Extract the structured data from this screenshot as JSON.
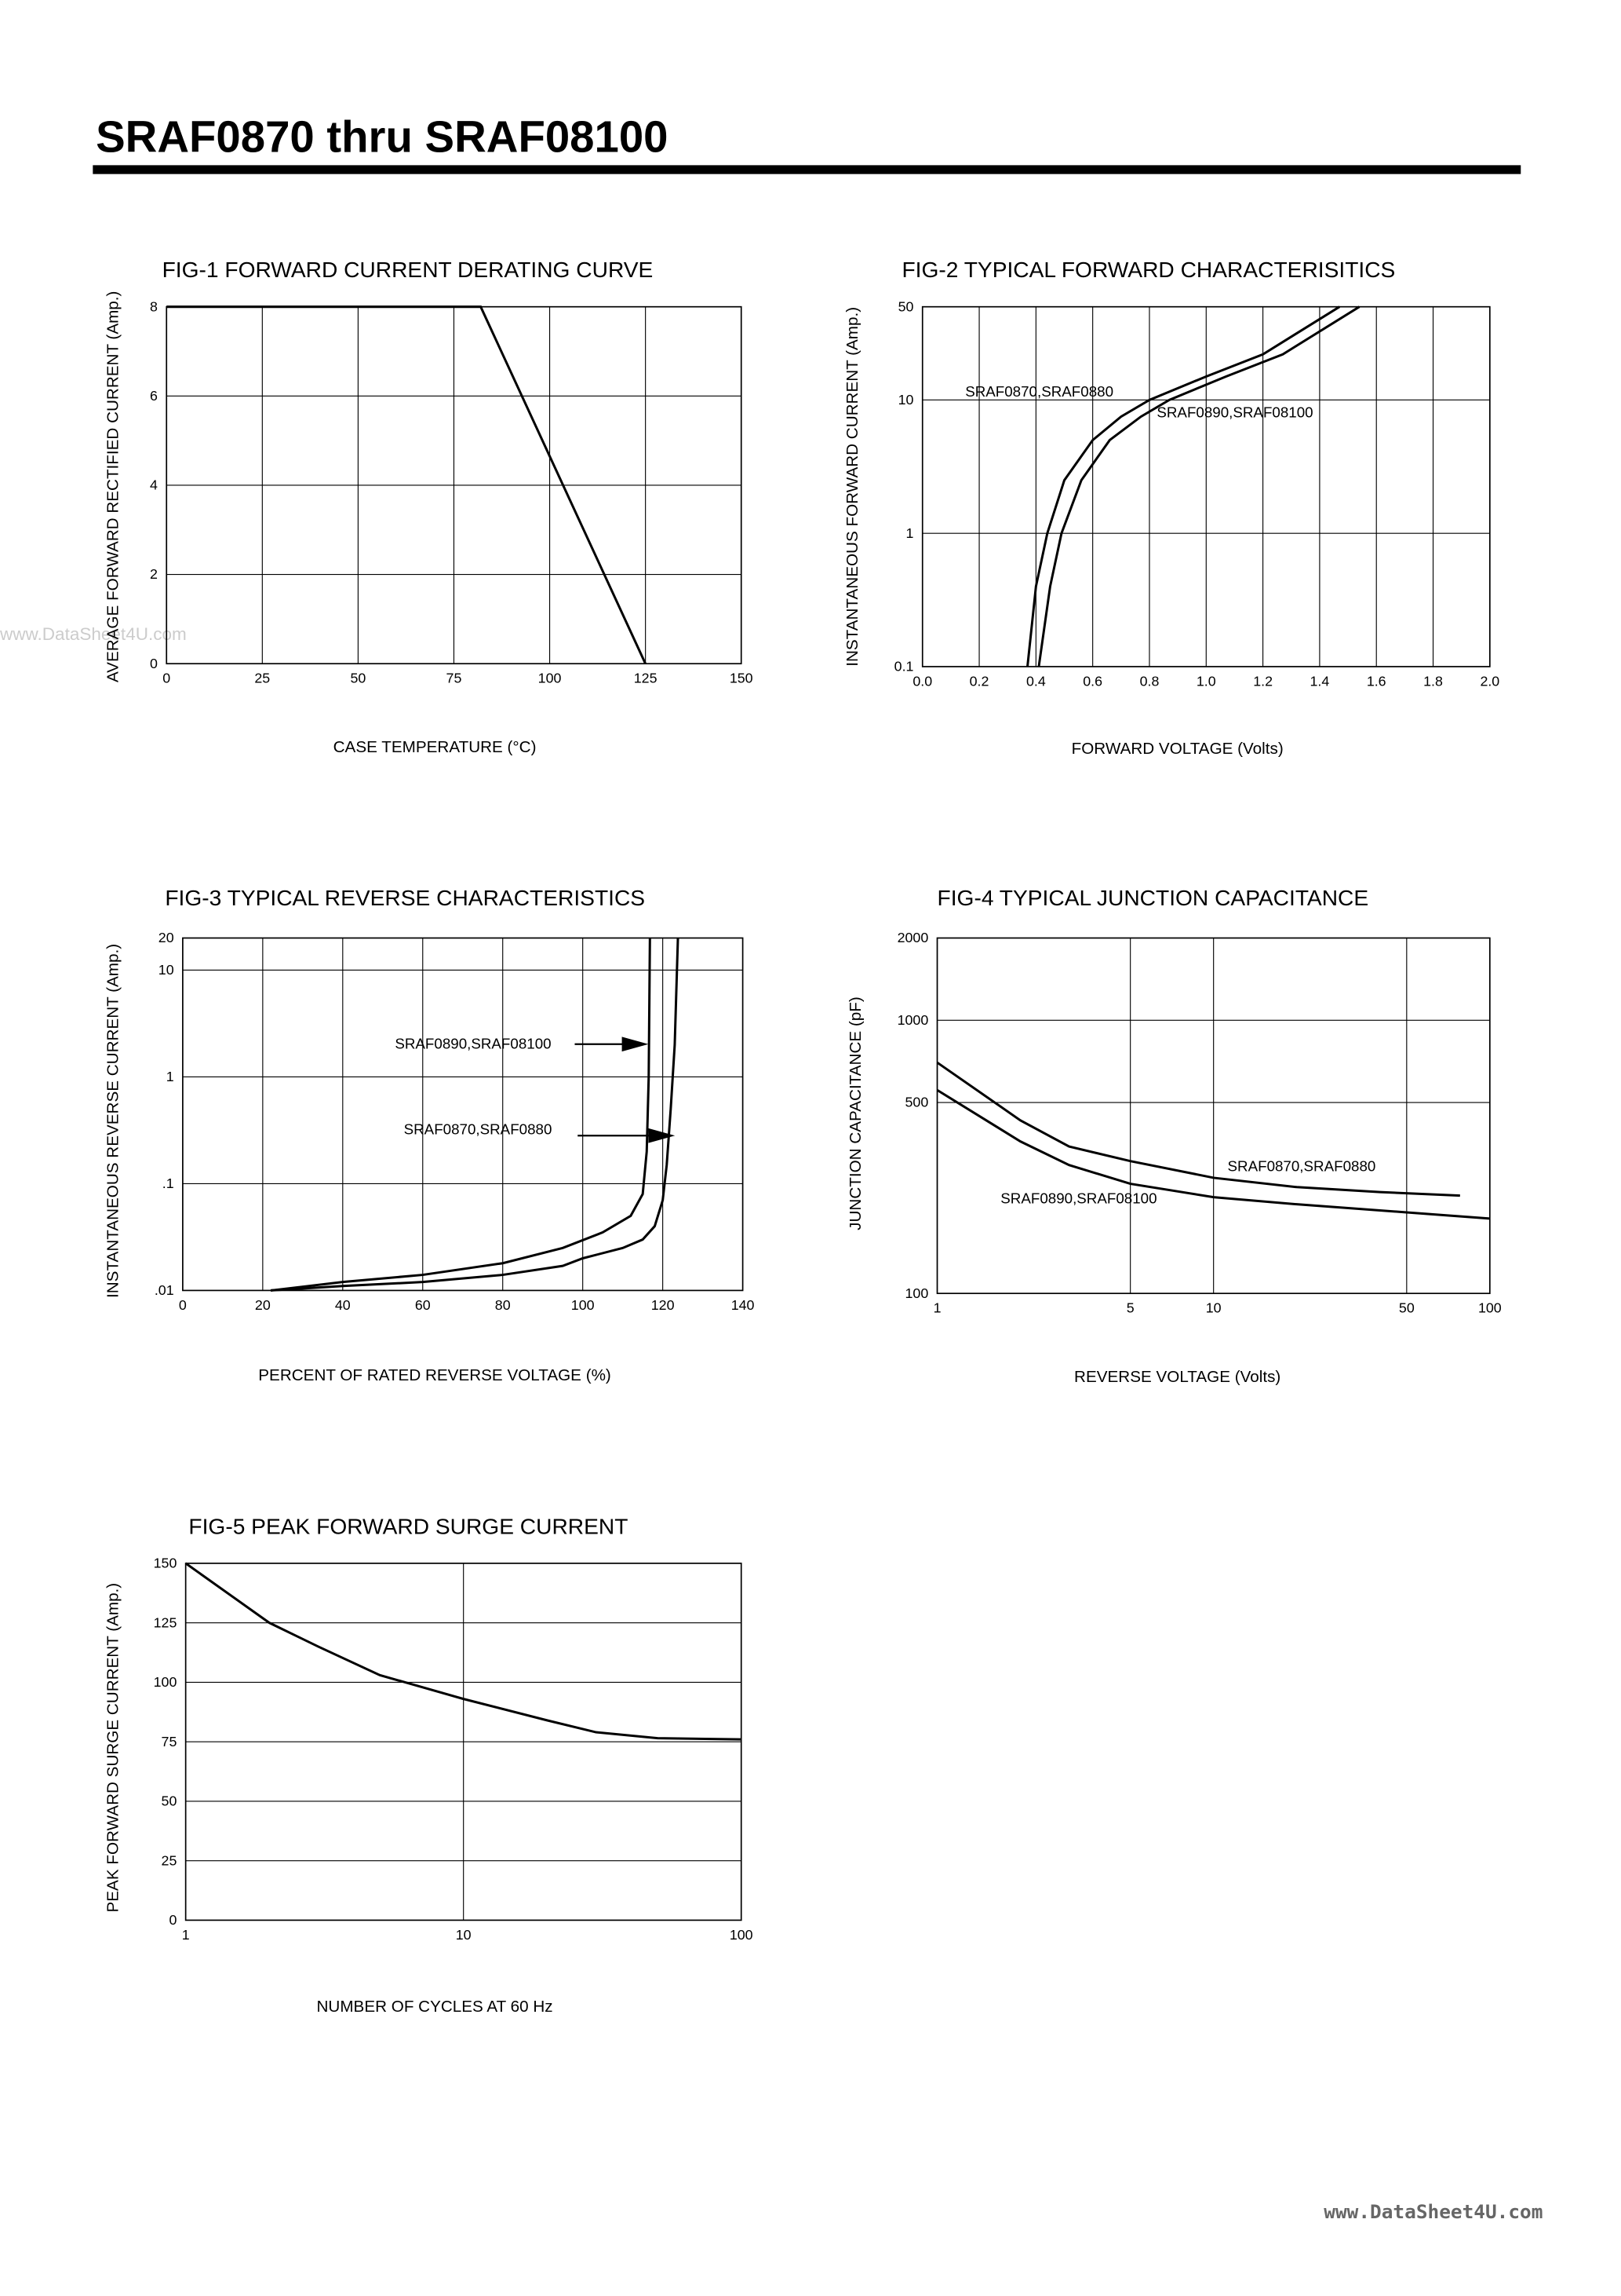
{
  "header": {
    "title": "SRAF0870 thru SRAF08100"
  },
  "watermarks": [
    "www.DataSheet4U.com",
    "www.DataSheet4U.com"
  ],
  "chart_data": [
    {
      "type": "line",
      "title": "FIG-1 FORWARD CURRENT DERATING CURVE",
      "xlabel": "CASE TEMPERATURE (°C)",
      "ylabel": "AVERAGE FORWARD RECTIFIED CURRENT (Amp.)",
      "xlim": [
        0,
        150
      ],
      "ylim": [
        0,
        8
      ],
      "xticks": [
        0,
        25,
        50,
        75,
        100,
        125,
        150
      ],
      "yticks": [
        0,
        2,
        4,
        6,
        8
      ],
      "xlog": false,
      "ylog": false,
      "grid": true,
      "series": [
        {
          "color": "#000000",
          "x": [
            0,
            82,
            125
          ],
          "values": [
            8,
            8,
            0
          ]
        }
      ]
    },
    {
      "type": "line",
      "title": "FIG-2 TYPICAL FORWARD CHARACTERISITICS",
      "xlabel": "FORWARD VOLTAGE (Volts)",
      "ylabel": "INSTANTANEOUS FORWARD CURRENT (Amp.)",
      "xlim": [
        0,
        2
      ],
      "ylim": [
        0.1,
        50
      ],
      "xticks": [
        {
          "value": 0,
          "label": "0.0"
        },
        0.2,
        0.4,
        0.6,
        0.8,
        {
          "value": 1,
          "label": "1.0"
        },
        1.2,
        1.4,
        1.6,
        1.8,
        {
          "value": 2,
          "label": "2.0"
        }
      ],
      "yticks": [
        0.1,
        1,
        10,
        50
      ],
      "xlog": false,
      "ylog": true,
      "grid": true,
      "annotations": [
        "SRAF0870,SRAF0880",
        "SRAF0890,SRAF08100"
      ],
      "series": [
        {
          "color": "#000000",
          "x": [
            0.37,
            0.4,
            0.44,
            0.5,
            0.6,
            0.7,
            0.8,
            1.0,
            1.2,
            1.47
          ],
          "values": [
            0.1,
            0.4,
            1,
            2.5,
            5,
            7.5,
            10,
            15,
            22,
            50
          ]
        },
        {
          "color": "#000000",
          "x": [
            0.41,
            0.45,
            0.49,
            0.56,
            0.66,
            0.77,
            0.87,
            1.07,
            1.27,
            1.54
          ],
          "values": [
            0.1,
            0.4,
            1,
            2.5,
            5,
            7.5,
            10,
            15,
            22,
            50
          ]
        }
      ]
    },
    {
      "type": "line",
      "title": "FIG-3 TYPICAL REVERSE CHARACTERISTICS",
      "xlabel": "PERCENT OF RATED REVERSE VOLTAGE (%)",
      "ylabel": "INSTANTANEOUS REVERSE CURRENT (Amp.)",
      "xlim": [
        0,
        140
      ],
      "ylim": [
        0.01,
        20
      ],
      "xticks": [
        0,
        20,
        40,
        60,
        80,
        100,
        120,
        140
      ],
      "yticks": [
        {
          "value": 0.01,
          "label": ".01"
        },
        {
          "value": 0.1,
          "label": ".1"
        },
        1,
        10,
        20
      ],
      "xlog": false,
      "ylog": true,
      "grid": true,
      "annotations": [
        "SRAF0890,SRAF08100",
        "SRAF0870,SRAF0880"
      ],
      "series": [
        {
          "color": "#000000",
          "x": [
            22,
            40,
            60,
            80,
            95,
            105,
            112,
            115,
            116,
            116.5,
            116.8
          ],
          "values": [
            0.01,
            0.012,
            0.014,
            0.018,
            0.025,
            0.035,
            0.05,
            0.08,
            0.2,
            1,
            20
          ]
        },
        {
          "color": "#000000",
          "x": [
            22,
            40,
            60,
            80,
            95,
            100,
            110,
            115,
            118,
            120,
            121,
            122,
            123,
            123.8
          ],
          "values": [
            0.01,
            0.011,
            0.012,
            0.014,
            0.017,
            0.02,
            0.025,
            0.03,
            0.04,
            0.07,
            0.15,
            0.5,
            2,
            20
          ]
        }
      ]
    },
    {
      "type": "line",
      "title": "FIG-4 TYPICAL JUNCTION CAPACITANCE",
      "xlabel": "REVERSE VOLTAGE (Volts)",
      "ylabel": "JUNCTION CAPACITANCE (pF)",
      "xlim": [
        1,
        100
      ],
      "ylim": [
        100,
        2000
      ],
      "xticks": [
        1,
        5,
        10,
        50,
        100
      ],
      "yticks": [
        100,
        500,
        1000,
        2000
      ],
      "xlog": true,
      "ylog": true,
      "grid": true,
      "annotations": [
        "SRAF0870,SRAF0880",
        "SRAF0890,SRAF08100"
      ],
      "series": [
        {
          "color": "#000000",
          "x": [
            1,
            2,
            3,
            5,
            10,
            20,
            40,
            78
          ],
          "values": [
            700,
            430,
            345,
            305,
            265,
            245,
            235,
            228
          ]
        },
        {
          "color": "#000000",
          "x": [
            1,
            2,
            3,
            5,
            10,
            20,
            50,
            100
          ],
          "values": [
            555,
            360,
            295,
            252,
            225,
            212,
            198,
            188
          ]
        }
      ]
    },
    {
      "type": "line",
      "title": "FIG-5 PEAK FORWARD SURGE CURRENT",
      "xlabel": "NUMBER OF CYCLES AT 60 Hz",
      "ylabel": "PEAK FORWARD SURGE    CURRENT (Amp.)",
      "xlim": [
        1,
        100
      ],
      "ylim": [
        0,
        150
      ],
      "xticks": [
        1,
        10,
        100
      ],
      "yticks": [
        0,
        25,
        50,
        75,
        100,
        125,
        150
      ],
      "xlog": true,
      "ylog": false,
      "grid": true,
      "series": [
        {
          "color": "#000000",
          "x": [
            1,
            2,
            3,
            5,
            10,
            20,
            30,
            50,
            100
          ],
          "values": [
            150,
            125,
            115,
            103,
            93,
            84,
            79,
            76.5,
            76
          ]
        }
      ]
    }
  ]
}
